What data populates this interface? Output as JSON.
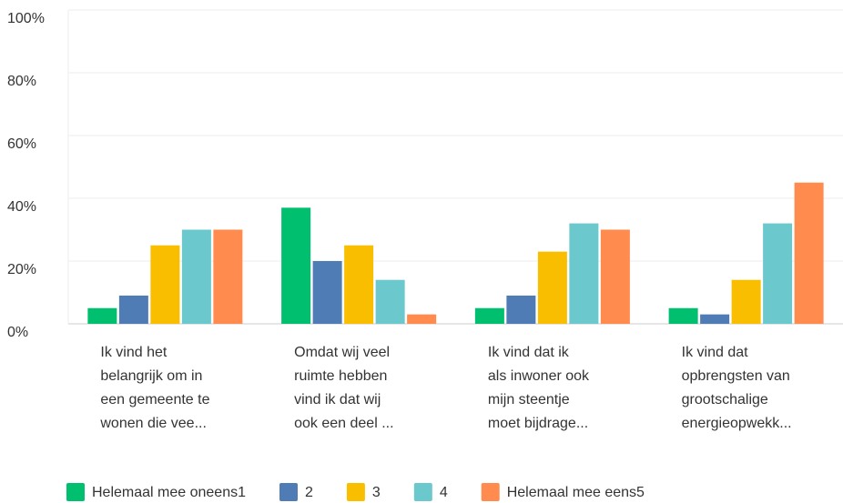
{
  "chart_data": {
    "type": "bar",
    "categories": [
      [
        "Ik vind het",
        "belangrijk om in",
        "een gemeente te",
        "wonen die vee..."
      ],
      [
        "Omdat wij veel",
        "ruimte hebben",
        "vind ik dat wij",
        "ook een deel ..."
      ],
      [
        "Ik vind dat ik",
        "als inwoner ook",
        "mijn steentje",
        "moet bijdrage..."
      ],
      [
        "Ik vind dat",
        "opbrengsten van",
        "grootschalige",
        "energieopwekk..."
      ]
    ],
    "series": [
      {
        "name": "Helemaal mee oneens1",
        "color": "#00bf6f",
        "values": [
          5,
          37,
          5,
          5
        ]
      },
      {
        "name": "2",
        "color": "#507cb6",
        "values": [
          9,
          20,
          9,
          3
        ]
      },
      {
        "name": "3",
        "color": "#f9be00",
        "values": [
          25,
          25,
          23,
          14
        ]
      },
      {
        "name": "4",
        "color": "#6bc8cd",
        "values": [
          30,
          14,
          32,
          32
        ]
      },
      {
        "name": "Helemaal mee eens5",
        "color": "#ff8b4f",
        "values": [
          30,
          3,
          30,
          45
        ]
      }
    ],
    "ylim": [
      0,
      100
    ],
    "yticks": [
      {
        "value": 0,
        "label": "0%"
      },
      {
        "value": 20,
        "label": "20%"
      },
      {
        "value": 40,
        "label": "40%"
      },
      {
        "value": 60,
        "label": "60%"
      },
      {
        "value": 80,
        "label": "80%"
      },
      {
        "value": 100,
        "label": "100%"
      }
    ],
    "grid": true,
    "legend": "bottom"
  }
}
